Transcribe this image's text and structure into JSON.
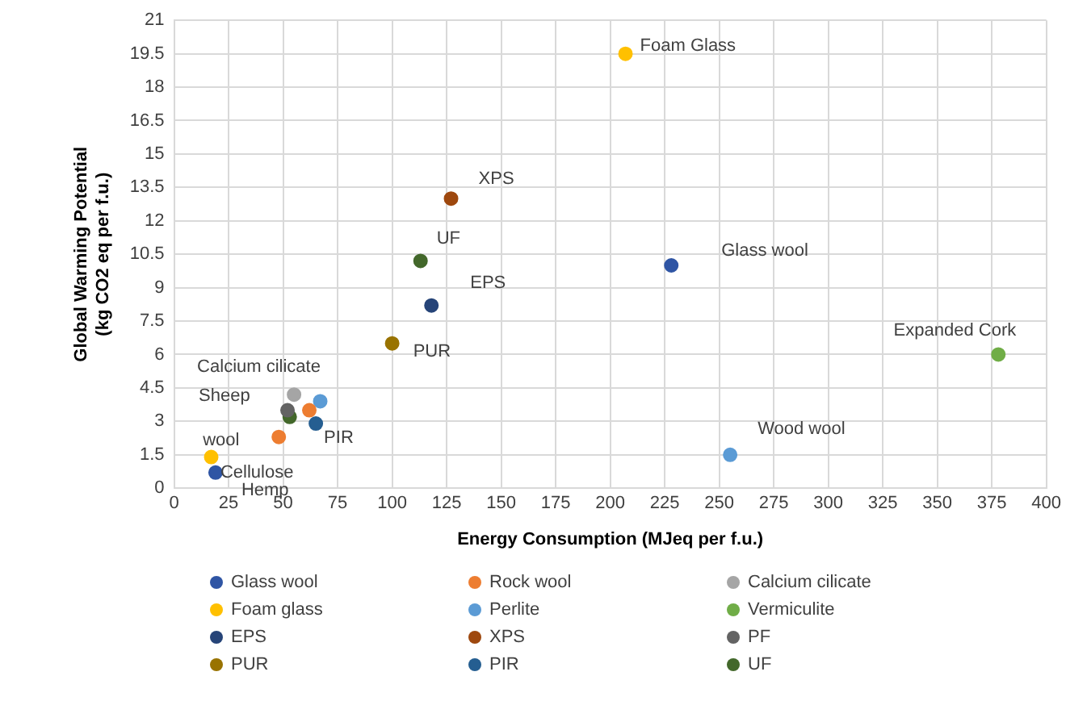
{
  "chart_data": {
    "type": "scatter",
    "xlabel": "Energy Consumption (MJeq per f.u.)",
    "ylabel": "Global Warming Potential (kg CO2 eq per f.u.)",
    "xlim": [
      0,
      400
    ],
    "xticks": [
      0,
      25,
      50,
      75,
      100,
      125,
      150,
      175,
      200,
      225,
      250,
      275,
      300,
      325,
      350,
      375,
      400
    ],
    "ylim": [
      0,
      21
    ],
    "yticks": [
      0,
      1.5,
      3,
      4.5,
      6,
      7.5,
      9,
      10.5,
      12,
      13.5,
      15,
      16.5,
      18,
      19.5,
      21
    ],
    "grid": true,
    "legend": "bottom",
    "marker": "circle",
    "series": [
      {
        "name": "Glass wool",
        "color": "#2f55a4",
        "x": [
          228,
          19
        ],
        "values": [
          10,
          0.7
        ]
      },
      {
        "name": "Rock wool",
        "color": "#ed7d31",
        "x": [
          62,
          48
        ],
        "values": [
          3.5,
          2.3
        ]
      },
      {
        "name": "Calcium cilicate",
        "color": "#a5a5a5",
        "x": [
          55
        ],
        "values": [
          4.2
        ]
      },
      {
        "name": "Foam glass",
        "color": "#ffc000",
        "x": [
          207,
          17
        ],
        "values": [
          19.5,
          1.4
        ]
      },
      {
        "name": "Perlite",
        "color": "#5b9bd5",
        "x": [
          67,
          255
        ],
        "values": [
          3.9,
          1.5
        ]
      },
      {
        "name": "Vermiculite",
        "color": "#70ad47",
        "x": [
          378
        ],
        "values": [
          6
        ]
      },
      {
        "name": "EPS",
        "color": "#264478",
        "x": [
          118
        ],
        "values": [
          8.2
        ]
      },
      {
        "name": "XPS",
        "color": "#9e480e",
        "x": [
          127
        ],
        "values": [
          13
        ]
      },
      {
        "name": "PF",
        "color": "#636363",
        "x": [
          52
        ],
        "values": [
          3.5
        ]
      },
      {
        "name": "PUR",
        "color": "#997300",
        "x": [
          100
        ],
        "values": [
          6.5
        ]
      },
      {
        "name": "PIR",
        "color": "#255e91",
        "x": [
          65
        ],
        "values": [
          2.9
        ]
      },
      {
        "name": "UF",
        "color": "#43682b",
        "x": [
          113,
          53
        ],
        "values": [
          10.2,
          3.2
        ]
      }
    ],
    "annotations": [
      {
        "text": "Foam Glass",
        "x": 207,
        "y": 19.5
      },
      {
        "text": "XPS",
        "x": 127,
        "y": 13
      },
      {
        "text": "UF",
        "x": 113,
        "y": 10.2
      },
      {
        "text": "EPS",
        "x": 118,
        "y": 8.2
      },
      {
        "text": "PUR",
        "x": 100,
        "y": 6.5
      },
      {
        "text": "Glass wool",
        "x": 228,
        "y": 10
      },
      {
        "text": "Expanded Cork",
        "x": 378,
        "y": 6
      },
      {
        "text": "Wood wool",
        "x": 255,
        "y": 1.5
      },
      {
        "text": "PIR",
        "x": 65,
        "y": 2.9
      },
      {
        "text": "Calcium cilicate",
        "x": 55,
        "y": 4.2
      },
      {
        "text": "Sheep",
        "x": 52,
        "y": 3.5
      },
      {
        "text": "wool",
        "x": 48,
        "y": 2.3
      },
      {
        "text": "Cellulose",
        "x": 19,
        "y": 0.7
      },
      {
        "text": "Hemp",
        "x": 19,
        "y": 0.7
      }
    ]
  }
}
